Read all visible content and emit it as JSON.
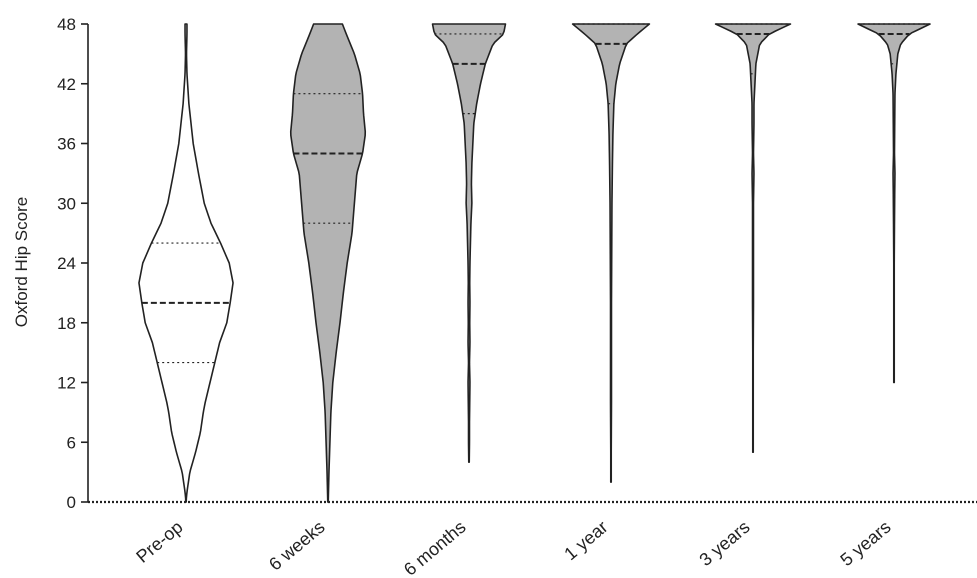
{
  "chart_data": {
    "type": "violin",
    "title": "",
    "ylabel": "Oxford Hip Score",
    "xlabel": "",
    "ylim": [
      0,
      48
    ],
    "yticks": [
      0,
      6,
      12,
      18,
      24,
      30,
      36,
      42,
      48
    ],
    "categories": [
      "Pre-op",
      "6 weeks",
      "6 months",
      "1 year",
      "3 years",
      "5 years"
    ],
    "fill_colors": [
      "#ffffff",
      "#b3b3b3",
      "#b3b3b3",
      "#b3b3b3",
      "#b3b3b3",
      "#b3b3b3"
    ],
    "stroke_color": "#222222",
    "series": [
      {
        "category": "Pre-op",
        "min": 0,
        "max": 48,
        "q1": 14,
        "median": 20,
        "q3": 26,
        "profile": [
          [
            0,
            0
          ],
          [
            1,
            0.02
          ],
          [
            3,
            0.08
          ],
          [
            5,
            0.2
          ],
          [
            7,
            0.3
          ],
          [
            9,
            0.36
          ],
          [
            10,
            0.4
          ],
          [
            12,
            0.5
          ],
          [
            14,
            0.6
          ],
          [
            16,
            0.7
          ],
          [
            18,
            0.85
          ],
          [
            20,
            0.92
          ],
          [
            22,
            0.98
          ],
          [
            24,
            0.9
          ],
          [
            26,
            0.72
          ],
          [
            28,
            0.52
          ],
          [
            30,
            0.38
          ],
          [
            33,
            0.26
          ],
          [
            36,
            0.15
          ],
          [
            40,
            0.06
          ],
          [
            43,
            0.02
          ],
          [
            45,
            0.01
          ],
          [
            47,
            0.02
          ],
          [
            48,
            0.02
          ]
        ]
      },
      {
        "category": "6 weeks",
        "min": 0,
        "max": 48,
        "q1": 28,
        "median": 35,
        "q3": 41,
        "profile": [
          [
            0,
            0.005
          ],
          [
            3,
            0.02
          ],
          [
            6,
            0.04
          ],
          [
            9,
            0.06
          ],
          [
            12,
            0.1
          ],
          [
            15,
            0.17
          ],
          [
            18,
            0.25
          ],
          [
            21,
            0.32
          ],
          [
            24,
            0.4
          ],
          [
            27,
            0.5
          ],
          [
            30,
            0.55
          ],
          [
            33,
            0.6
          ],
          [
            35,
            0.72
          ],
          [
            37,
            0.78
          ],
          [
            39,
            0.74
          ],
          [
            41,
            0.72
          ],
          [
            43,
            0.67
          ],
          [
            45,
            0.55
          ],
          [
            47,
            0.38
          ],
          [
            48,
            0.3
          ]
        ]
      },
      {
        "category": "6 months",
        "min": 4,
        "max": 48,
        "q1": 39,
        "median": 44,
        "q3": 47,
        "profile": [
          [
            4,
            0.005
          ],
          [
            6,
            0.01
          ],
          [
            8,
            0.01
          ],
          [
            10,
            0.015
          ],
          [
            12,
            0.02
          ],
          [
            14,
            0.01
          ],
          [
            16,
            0.02
          ],
          [
            18,
            0.015
          ],
          [
            20,
            0.02
          ],
          [
            22,
            0.015
          ],
          [
            24,
            0.02
          ],
          [
            26,
            0.03
          ],
          [
            28,
            0.04
          ],
          [
            30,
            0.06
          ],
          [
            32,
            0.05
          ],
          [
            34,
            0.06
          ],
          [
            36,
            0.08
          ],
          [
            38,
            0.1
          ],
          [
            40,
            0.16
          ],
          [
            42,
            0.24
          ],
          [
            44,
            0.34
          ],
          [
            46,
            0.5
          ],
          [
            47,
            0.72
          ],
          [
            48,
            0.76
          ]
        ]
      },
      {
        "category": "1 year",
        "min": 2,
        "max": 48,
        "q1": 40,
        "median": 46,
        "q3": 48,
        "profile": [
          [
            2,
            0.005
          ],
          [
            5,
            0.005
          ],
          [
            10,
            0.01
          ],
          [
            15,
            0.01
          ],
          [
            20,
            0.01
          ],
          [
            25,
            0.015
          ],
          [
            30,
            0.02
          ],
          [
            34,
            0.03
          ],
          [
            37,
            0.04
          ],
          [
            40,
            0.06
          ],
          [
            42,
            0.1
          ],
          [
            44,
            0.18
          ],
          [
            46,
            0.32
          ],
          [
            47,
            0.55
          ],
          [
            48,
            0.8
          ]
        ]
      },
      {
        "category": "3 years",
        "min": 5,
        "max": 48,
        "q1": 43,
        "median": 47,
        "q3": 48,
        "profile": [
          [
            5,
            0.005
          ],
          [
            10,
            0.005
          ],
          [
            15,
            0.005
          ],
          [
            20,
            0.01
          ],
          [
            25,
            0.01
          ],
          [
            30,
            0.01
          ],
          [
            33,
            0.02
          ],
          [
            35,
            0.01
          ],
          [
            38,
            0.02
          ],
          [
            40,
            0.02
          ],
          [
            42,
            0.04
          ],
          [
            44,
            0.06
          ],
          [
            46,
            0.14
          ],
          [
            47,
            0.34
          ],
          [
            48,
            0.78
          ]
        ]
      },
      {
        "category": "5 years",
        "min": 12,
        "max": 48,
        "q1": 44,
        "median": 47,
        "q3": 48,
        "profile": [
          [
            12,
            0.005
          ],
          [
            16,
            0.005
          ],
          [
            20,
            0.005
          ],
          [
            24,
            0.005
          ],
          [
            28,
            0.01
          ],
          [
            31,
            0.015
          ],
          [
            33,
            0.02
          ],
          [
            35,
            0.01
          ],
          [
            38,
            0.015
          ],
          [
            41,
            0.02
          ],
          [
            43,
            0.04
          ],
          [
            45,
            0.08
          ],
          [
            46,
            0.14
          ],
          [
            47,
            0.32
          ],
          [
            48,
            0.75
          ]
        ]
      }
    ]
  }
}
